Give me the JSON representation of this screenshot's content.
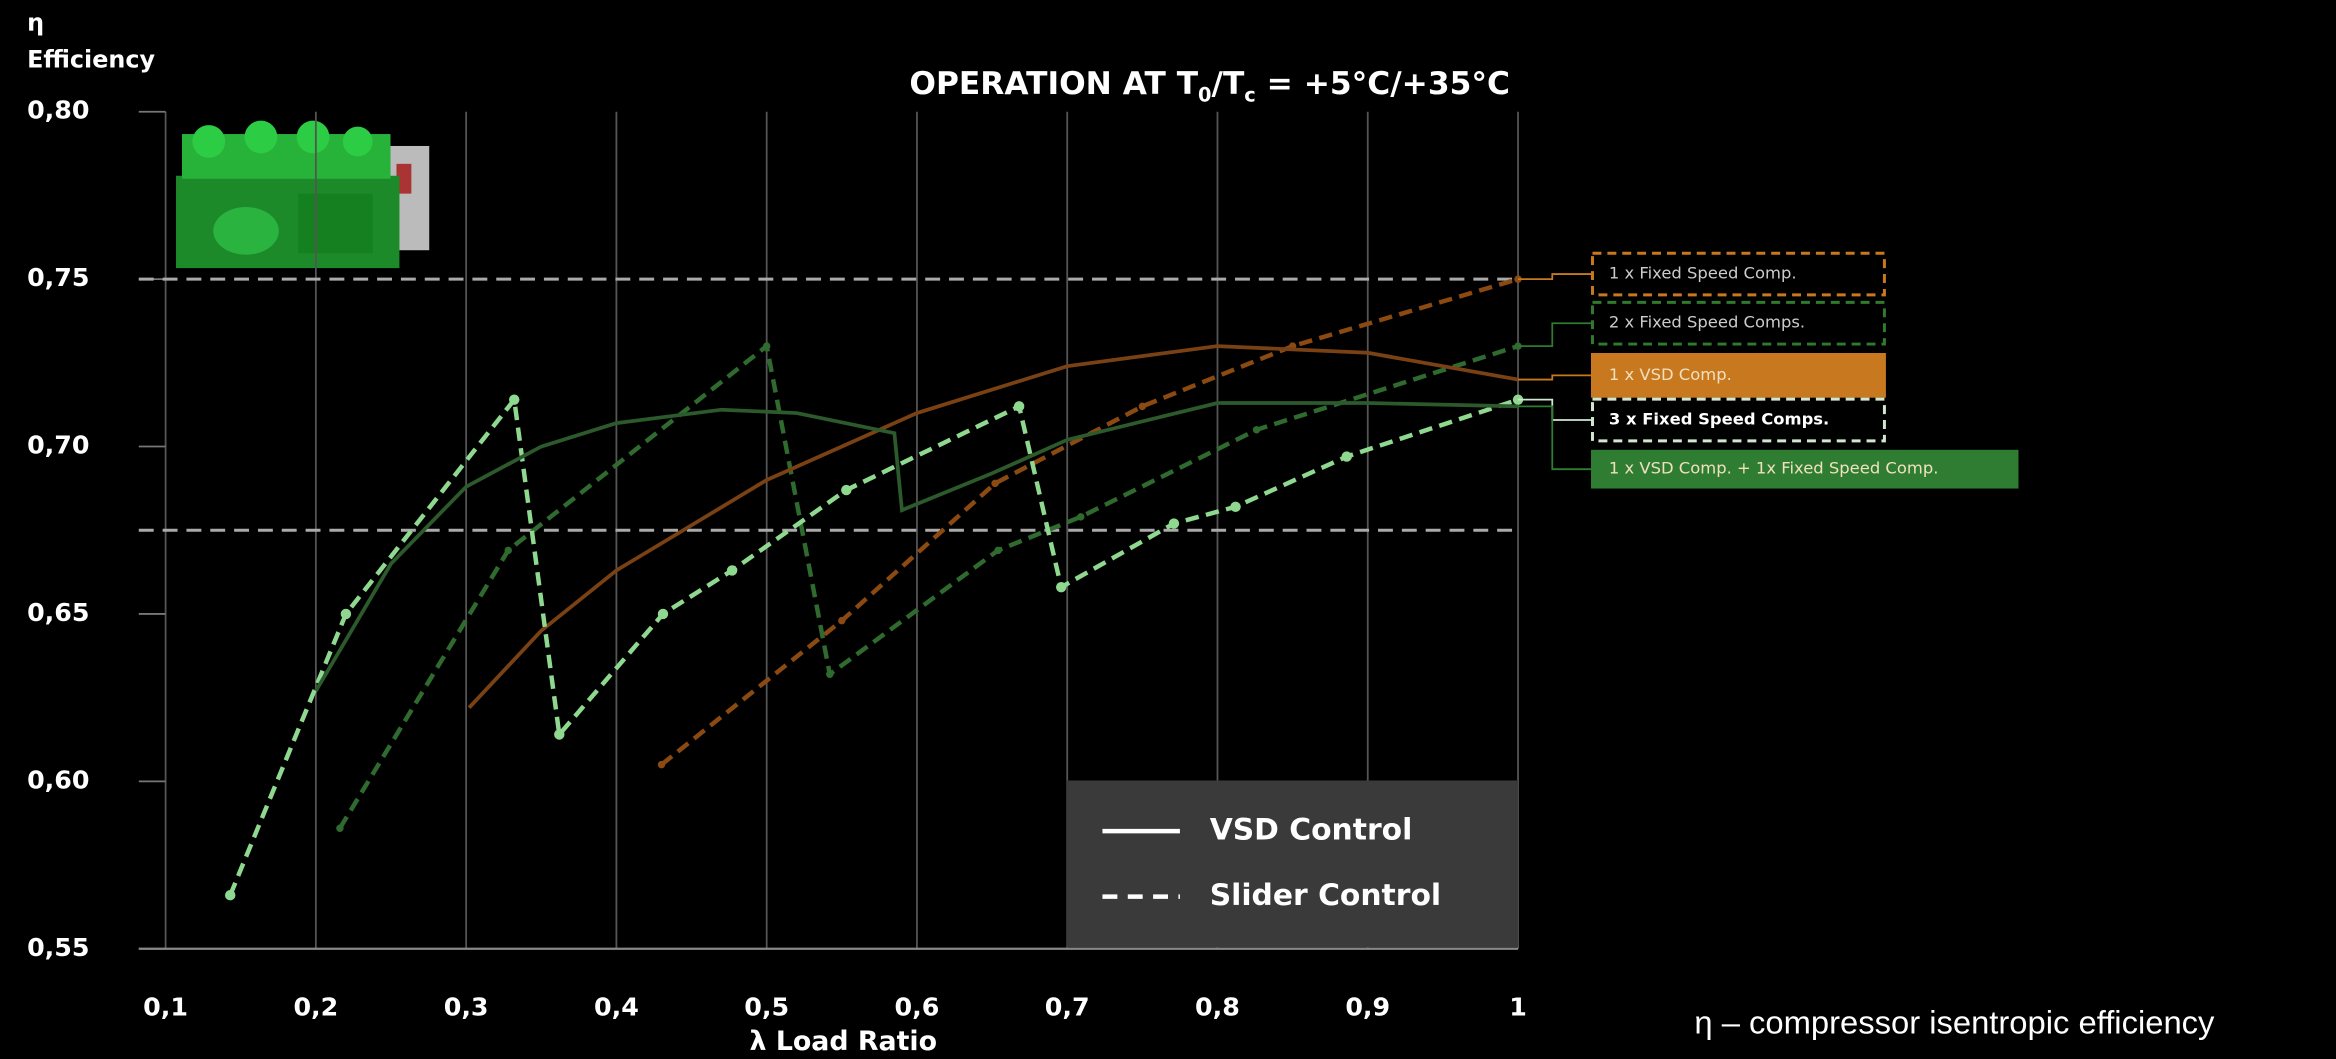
{
  "chart_data": {
    "type": "line",
    "title": [
      "OPERATION AT T",
      "0",
      "/T",
      "c",
      " = +5°C/+35°C"
    ],
    "y_label": [
      "η",
      "Efficiency"
    ],
    "x_label": "λ Load Ratio",
    "footnote": "η – compressor isentropic efficiency",
    "xlim": [
      0.1,
      1
    ],
    "ylim": [
      0.55,
      0.8
    ],
    "xticks": [
      {
        "value": 0.1,
        "label": "0,1"
      },
      {
        "value": 0.2,
        "label": "0,2"
      },
      {
        "value": 0.3,
        "label": "0,3"
      },
      {
        "value": 0.4,
        "label": "0,4"
      },
      {
        "value": 0.5,
        "label": "0,5"
      },
      {
        "value": 0.6,
        "label": "0,6"
      },
      {
        "value": 0.7,
        "label": "0,7"
      },
      {
        "value": 0.8,
        "label": "0,8"
      },
      {
        "value": 0.9,
        "label": "0,9"
      },
      1
    ],
    "yticks": [
      {
        "value": 0.55,
        "label": "0,55"
      },
      {
        "value": 0.6,
        "label": "0,60"
      },
      {
        "value": 0.65,
        "label": "0,65"
      },
      {
        "value": 0.7,
        "label": "0,70"
      },
      {
        "value": 0.75,
        "label": "0,75"
      },
      {
        "value": 0.8,
        "label": "0,80"
      }
    ],
    "grid": true,
    "reference_lines": [
      0.75,
      0.675
    ],
    "style_legend": [
      {
        "label": "VSD Control",
        "dash": false
      },
      {
        "label": "Slider Control",
        "dash": true
      }
    ],
    "series": [
      {
        "name": "1 x Fixed Speed Comp.",
        "color": "#8a4a12",
        "dash": true,
        "markers": true,
        "label_color": "#c8781e",
        "label_box": "dashed",
        "x": [
          0.43,
          0.55,
          0.652,
          0.75,
          0.85,
          1.0
        ],
        "values": [
          0.605,
          0.648,
          0.689,
          0.712,
          0.73,
          0.75
        ]
      },
      {
        "name": "2 x Fixed Speed Comps.",
        "color": "#2f6a2f",
        "dash": true,
        "markers": true,
        "label_color": "#2f7a2f",
        "label_box": "dashed",
        "x": [
          0.216,
          0.328,
          0.5,
          0.542,
          0.654,
          0.709,
          0.826,
          1.0
        ],
        "values": [
          0.586,
          0.669,
          0.73,
          0.632,
          0.669,
          0.679,
          0.705,
          0.73
        ]
      },
      {
        "name": "1 x VSD Comp.",
        "color": "#7a4214",
        "dash": false,
        "markers": false,
        "label_color": "#c8781e",
        "label_box": "filled",
        "x": [
          0.302,
          0.35,
          0.4,
          0.5,
          0.6,
          0.7,
          0.8,
          0.9,
          1.0
        ],
        "values": [
          0.622,
          0.645,
          0.663,
          0.69,
          0.71,
          0.724,
          0.73,
          0.728,
          0.72
        ]
      },
      {
        "name": "3 x Fixed Speed Comps.",
        "color": "#8fd88f",
        "dash": true,
        "markers": true,
        "label_color": "#cfe8cf",
        "label_box": "dashed",
        "x": [
          0.143,
          0.22,
          0.332,
          0.362,
          0.431,
          0.477,
          0.553,
          0.668,
          0.696,
          0.771,
          0.812,
          0.886,
          1.0
        ],
        "values": [
          0.566,
          0.65,
          0.714,
          0.614,
          0.65,
          0.663,
          0.687,
          0.712,
          0.658,
          0.677,
          0.682,
          0.697,
          0.714
        ]
      },
      {
        "name": "1 x VSD Comp. + 1x Fixed Speed Comp.",
        "color": "#2c5a2c",
        "dash": false,
        "markers": false,
        "label_color": "#2e7d32",
        "label_box": "filled",
        "x": [
          0.2,
          0.25,
          0.3,
          0.35,
          0.4,
          0.47,
          0.52,
          0.585,
          0.59,
          0.65,
          0.7,
          0.8,
          0.9,
          1.0
        ],
        "values": [
          0.627,
          0.665,
          0.688,
          0.7,
          0.707,
          0.711,
          0.71,
          0.704,
          0.681,
          0.692,
          0.702,
          0.713,
          0.713,
          0.712
        ]
      }
    ]
  }
}
